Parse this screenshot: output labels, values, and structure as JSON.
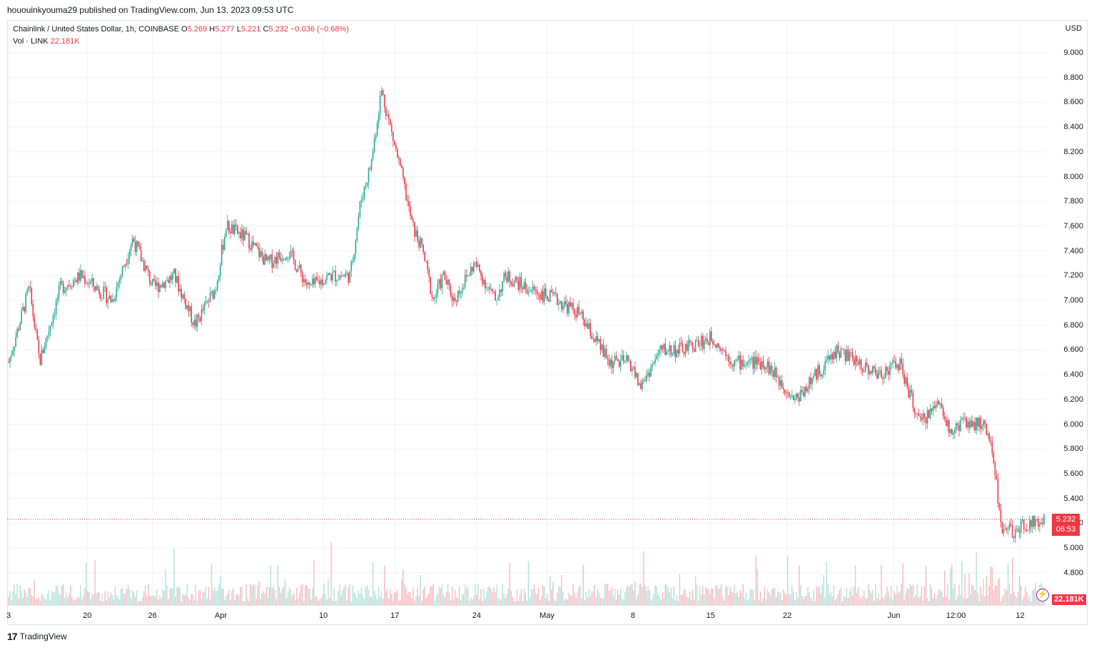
{
  "published": "hououinkyouma29 published on TradingView.com, Jun 13, 2023 09:53 UTC",
  "legend": {
    "symbol": "Chainlink / United States Dollar, 1h, COINBASE",
    "o_label": "O",
    "o": "5.269",
    "h_label": "H",
    "h": "5.277",
    "l_label": "L",
    "l": "5.221",
    "c_label": "C",
    "c": "5.232",
    "change": "−0.036 (−0.68%)",
    "vol_label": "Vol · LINK",
    "vol_value": "22.181K"
  },
  "price_scale": {
    "currency": "USD",
    "current_price": "5.232",
    "countdown": "06:53",
    "volume_badge": "22.181K"
  },
  "brand": "TradingView",
  "colors": {
    "up": "#22ab94",
    "down": "#f23645",
    "grid": "#f0f3fa"
  },
  "chart_data": {
    "type": "candlestick",
    "interval": "1h",
    "ylim": [
      4.6,
      9.1
    ],
    "yticks": [
      4.8,
      5.0,
      5.2,
      5.4,
      5.6,
      5.8,
      6.0,
      6.2,
      6.4,
      6.6,
      6.8,
      7.0,
      7.2,
      7.4,
      7.6,
      7.8,
      8.0,
      8.2,
      8.4,
      8.6,
      8.8,
      9.0
    ],
    "ytick_labels": [
      "4.800",
      "5.000",
      "5.200",
      "5.400",
      "5.600",
      "5.800",
      "6.000",
      "6.200",
      "6.400",
      "6.600",
      "6.800",
      "7.000",
      "7.200",
      "7.400",
      "7.600",
      "7.800",
      "8.000",
      "8.200",
      "8.400",
      "8.600",
      "8.800",
      "9.000"
    ],
    "xtick_labels": [
      "3",
      "20",
      "26",
      "Apr",
      "10",
      "17",
      "24",
      "May",
      "8",
      "15",
      "22",
      "Jun",
      "12:00",
      "12"
    ],
    "xtick_index": [
      0,
      0.076,
      0.139,
      0.205,
      0.304,
      0.373,
      0.452,
      0.52,
      0.603,
      0.678,
      0.752,
      0.855,
      0.915,
      0.977
    ],
    "series": [
      {
        "name": "LINKUSD",
        "close_path_x": [
          0,
          0.02,
          0.03,
          0.05,
          0.07,
          0.1,
          0.12,
          0.14,
          0.16,
          0.18,
          0.2,
          0.21,
          0.23,
          0.25,
          0.27,
          0.29,
          0.31,
          0.33,
          0.34,
          0.35,
          0.36,
          0.38,
          0.39,
          0.4,
          0.41,
          0.42,
          0.43,
          0.45,
          0.47,
          0.48,
          0.5,
          0.53,
          0.55,
          0.58,
          0.6,
          0.61,
          0.63,
          0.65,
          0.68,
          0.7,
          0.71,
          0.73,
          0.76,
          0.78,
          0.8,
          0.82,
          0.84,
          0.86,
          0.88,
          0.9,
          0.91,
          0.92,
          0.94,
          0.95,
          0.96,
          0.965,
          0.97,
          0.98,
          0.99,
          1.0
        ],
        "close_path_y": [
          6.5,
          7.1,
          6.5,
          7.1,
          7.2,
          7.0,
          7.5,
          7.1,
          7.2,
          6.8,
          7.1,
          7.6,
          7.5,
          7.3,
          7.4,
          7.1,
          7.2,
          7.2,
          7.8,
          8.1,
          8.7,
          8.0,
          7.6,
          7.4,
          7.0,
          7.2,
          7.0,
          7.3,
          7.0,
          7.2,
          7.1,
          7.0,
          6.9,
          6.5,
          6.5,
          6.3,
          6.6,
          6.6,
          6.7,
          6.5,
          6.5,
          6.5,
          6.2,
          6.4,
          6.6,
          6.5,
          6.4,
          6.5,
          6.0,
          6.2,
          5.9,
          6.0,
          6.0,
          5.8,
          5.1,
          5.2,
          5.1,
          5.2,
          5.2,
          5.232
        ]
      }
    ],
    "volume_axis_max": "22.181K"
  }
}
